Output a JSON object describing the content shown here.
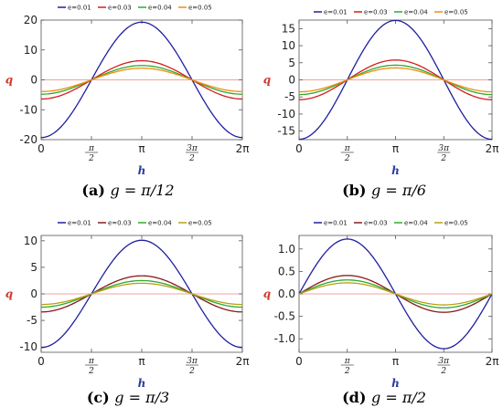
{
  "chart_data": [
    {
      "type": "line",
      "caption_tag": "(a)",
      "caption_text": "g = π/12",
      "xlabel": "h",
      "ylabel": "q",
      "xlim": [
        0,
        6.2832
      ],
      "ylim": [
        -20,
        20
      ],
      "yticks": [
        -20,
        -10,
        0,
        10,
        20
      ],
      "ytick_labels": [
        "-20",
        "-10",
        "0",
        "10",
        "20"
      ],
      "amplitudes": [
        19.3,
        6.4,
        4.8,
        3.9
      ],
      "wave": "neg-cos",
      "series": [
        {
          "name": "e=0.01",
          "color": "#1f1fa0"
        },
        {
          "name": "e=0.03",
          "color": "#d81b1b"
        },
        {
          "name": "e=0.04",
          "color": "#2eaa2e"
        },
        {
          "name": "e=0.05",
          "color": "#f28c0f"
        }
      ]
    },
    {
      "type": "line",
      "caption_tag": "(b)",
      "caption_text": "g = π/6",
      "xlabel": "h",
      "ylabel": "q",
      "xlim": [
        0,
        6.2832
      ],
      "ylim": [
        -17.5,
        17.5
      ],
      "yticks": [
        -15,
        -10,
        -5,
        0,
        5,
        10,
        15
      ],
      "ytick_labels": [
        "-15",
        "-10",
        "-5",
        "0",
        "5",
        "10",
        "15"
      ],
      "amplitudes": [
        17.4,
        5.8,
        4.3,
        3.5
      ],
      "wave": "neg-cos",
      "series": [
        {
          "name": "e=0.01",
          "color": "#1f1fa0"
        },
        {
          "name": "e=0.03",
          "color": "#d81b1b"
        },
        {
          "name": "e=0.04",
          "color": "#2eaa2e"
        },
        {
          "name": "e=0.05",
          "color": "#f28c0f"
        }
      ]
    },
    {
      "type": "line",
      "caption_tag": "(c)",
      "caption_text": "g = π/3",
      "xlabel": "h",
      "ylabel": "q",
      "xlim": [
        0,
        6.2832
      ],
      "ylim": [
        -11,
        11
      ],
      "yticks": [
        -10,
        -5,
        0,
        5,
        10
      ],
      "ytick_labels": [
        "-10",
        "-5",
        "0",
        "5",
        "10"
      ],
      "amplitudes": [
        10.1,
        3.4,
        2.5,
        2.0
      ],
      "wave": "neg-cos",
      "series": [
        {
          "name": "e=0.01",
          "color": "#1f1fa0"
        },
        {
          "name": "e=0.03",
          "color": "#8b1a1a"
        },
        {
          "name": "e=0.04",
          "color": "#2eaa2e"
        },
        {
          "name": "e=0.05",
          "color": "#b8a016"
        }
      ]
    },
    {
      "type": "line",
      "caption_tag": "(d)",
      "caption_text": "g = π/2",
      "xlabel": "h",
      "ylabel": "q",
      "xlim": [
        0,
        6.2832
      ],
      "ylim": [
        -1.3,
        1.3
      ],
      "yticks": [
        -1.0,
        -0.5,
        0.0,
        0.5,
        1.0
      ],
      "ytick_labels": [
        "-1.0",
        "-0.5",
        "0.0",
        "0.5",
        "1.0"
      ],
      "amplitudes": [
        1.22,
        0.41,
        0.31,
        0.245
      ],
      "wave": "sin",
      "series": [
        {
          "name": "e=0.01",
          "color": "#1f1fa0"
        },
        {
          "name": "e=0.03",
          "color": "#8b1a1a"
        },
        {
          "name": "e=0.04",
          "color": "#2eaa2e"
        },
        {
          "name": "e=0.05",
          "color": "#b8a016"
        }
      ]
    }
  ],
  "xtick_labels": [
    "0",
    "π/2",
    "π",
    "3π/2",
    "2π"
  ]
}
